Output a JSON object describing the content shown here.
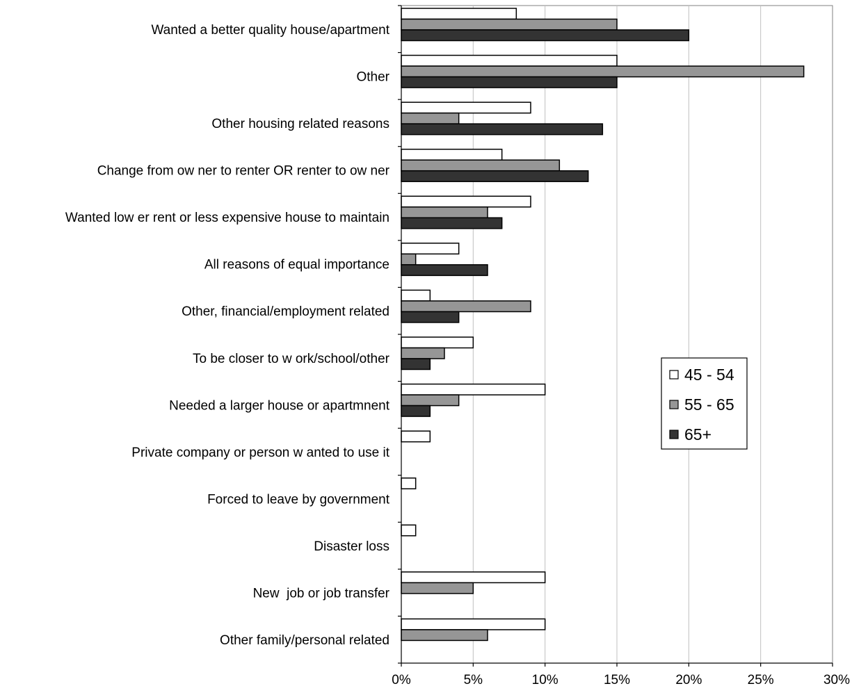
{
  "chart_data": {
    "type": "bar",
    "orientation": "horizontal",
    "categories": [
      "Wanted a better quality house/apartment",
      "Other",
      "Other housing related reasons",
      "Change from ow ner to renter OR renter to ow ner",
      "Wanted low er rent or less expensive house to maintain",
      "All reasons of equal importance",
      "Other, financial/employment related",
      "To be closer to w ork/school/other",
      "Needed a larger house or apartmnent",
      "Private company or person w anted to use it",
      "Forced to leave by government",
      "Disaster loss",
      "New  job or job transfer",
      "Other family/personal related"
    ],
    "series": [
      {
        "name": "45 - 54",
        "color": "#ffffff",
        "values": [
          8,
          15,
          9,
          7,
          9,
          4,
          2,
          5,
          10,
          2,
          1,
          1,
          10,
          10
        ]
      },
      {
        "name": "55 - 65",
        "color": "#969696",
        "values": [
          15,
          28,
          4,
          11,
          6,
          1,
          9,
          3,
          4,
          0,
          0,
          0,
          5,
          6
        ]
      },
      {
        "name": "65+",
        "color": "#333333",
        "values": [
          20,
          15,
          14,
          13,
          7,
          6,
          4,
          2,
          2,
          0,
          0,
          0,
          0,
          0
        ]
      }
    ],
    "xlim": [
      0,
      30
    ],
    "xticks": [
      "0%",
      "5%",
      "10%",
      "15%",
      "20%",
      "25%",
      "30%"
    ],
    "unit": "%",
    "grid": "vertical",
    "legend_position": "right"
  }
}
